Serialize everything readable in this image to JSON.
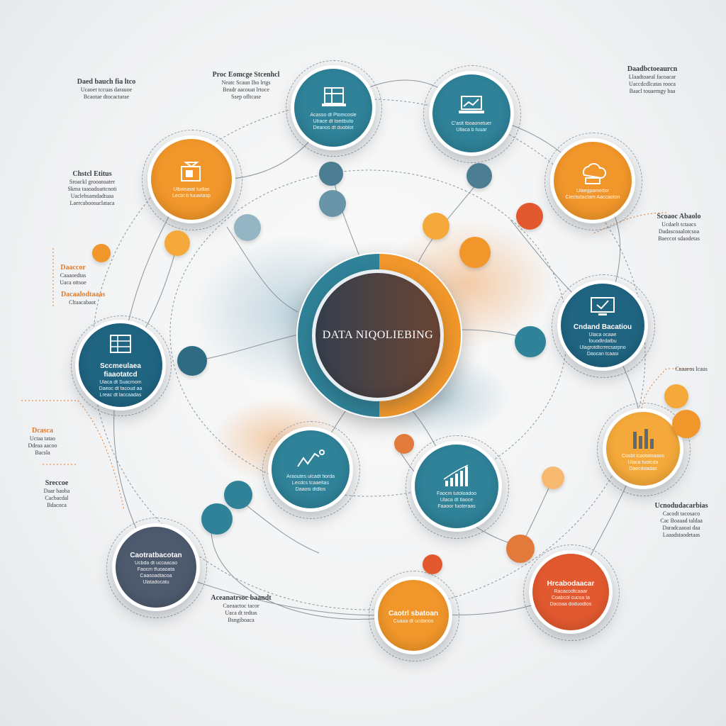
{
  "center": {
    "title": "DATA NIQOLIEBING"
  },
  "colors": {
    "teal": "#2f8298",
    "dark_teal": "#1f6481",
    "orange": "#f0962a",
    "red_orange": "#e2592f",
    "slate": "#4d5a6e",
    "dark_center": "#3b4555",
    "line": "#8a949c"
  },
  "hubs": [
    {
      "id": "h1",
      "icon": "data-table-icon",
      "title": "",
      "lines": [
        "Acasso dt Ptomcosle",
        "Ulrace dt toeitbuto",
        "Deanos dt duoblot"
      ]
    },
    {
      "id": "h2",
      "icon": "laptop-chart-icon",
      "title": "",
      "lines": [
        "C'aslt tboaonetuer",
        "Ullaca b fuuar"
      ]
    },
    {
      "id": "h3",
      "icon": "media-box-icon",
      "title": "",
      "lines": [
        "Ulbalsaiat tudlas",
        "Lecbt b fuuarlasp"
      ]
    },
    {
      "id": "h4",
      "icon": "cloud-storage-icon",
      "title": "",
      "lines": [
        "Ulaegpamedor",
        "Clectsdactam Aaccaoton"
      ]
    },
    {
      "id": "h5",
      "icon": "spreadsheet-icon",
      "title": "Sccmeulaea fiaaotatcd",
      "lines": [
        "Ulaca dt Suacmom",
        "Daeoc dt facoud aa",
        "Lreac dt laccaadas"
      ]
    },
    {
      "id": "h6",
      "icon": "monitor-check-icon",
      "title": "Cndand Bacatiou",
      "lines": [
        "Ulaca ocaae fouodtrdatbu",
        "Ulagrotdtcrrecsarpno",
        "Daocan tcaasi"
      ]
    },
    {
      "id": "h7",
      "icon": "trend-line-icon",
      "title": "",
      "lines": [
        "Araoutes ulcadt fiorda",
        "Lecdcs tcaaeltas",
        "Daaosi dtdlos"
      ]
    },
    {
      "id": "h8",
      "icon": "bar-growth-icon",
      "title": "",
      "lines": [
        "Faocm tutoloadoo",
        "Ulaca dt tlaoce",
        "Faaoor fuoteraas"
      ]
    },
    {
      "id": "h9",
      "icon": "bar-chart-icon",
      "title": "",
      "lines": [
        "Cosbt lcaotatoaaos",
        "Ulaca fuotcda",
        "Daecdoadas"
      ]
    },
    {
      "id": "h10",
      "icon": "",
      "title": "Caotratbacotan",
      "lines": [
        "Ucbda dt uccaacao",
        "Faocm tfuoaoata",
        "Caasoadtacoa",
        "Ulatadocatu"
      ]
    },
    {
      "id": "h11",
      "icon": "",
      "title": "Caotrl sbatoan",
      "lines": [
        "Cuaaa dt ucdanos"
      ]
    },
    {
      "id": "h12",
      "icon": "",
      "title": "Hrcabodaacar",
      "lines": [
        "Racacodtcaaar",
        "Coabcol cucoa ta",
        "Dacoaa doduodtos"
      ]
    }
  ],
  "notes": [
    {
      "id": "n1",
      "title": "Daed bauch fia ltco",
      "lines": [
        "Ucaoer tccuas darauoe",
        "Bcaotae dtocactarae"
      ]
    },
    {
      "id": "n2",
      "title": "Proc Eomcge Stcenhcl",
      "lines": [
        "Neatc Scaun Ibo lrtgs",
        "Beadr aacouat lrtoce",
        "Ssep ofltcase"
      ]
    },
    {
      "id": "n3",
      "title": "Chstcl Etitus",
      "lines": [
        "Sroackl grooanaater",
        "Skma taaoadoattcnoti",
        "Uaclebsamdadtuaa",
        "Laercaboosuclataca"
      ]
    },
    {
      "id": "n4",
      "title": "Daaccor",
      "lines": [
        "Caaaoedtas",
        "Uaca ottsoe"
      ]
    },
    {
      "id": "n5",
      "title": "Daadbctoeaurcn",
      "lines": [
        "Llaadtoaeal facoacar",
        "Uaccdcdlcatas rooca",
        "Baacl touaemgy baa"
      ]
    },
    {
      "id": "n6",
      "title": "Dcasca",
      "lines": [
        "Uctaa tatao",
        "Ddeaa aacoo",
        "Bacsla"
      ]
    },
    {
      "id": "n7",
      "title": "Sreccoe",
      "lines": [
        "Daar baoba",
        "Cacbacdal",
        "Bdacoca"
      ]
    },
    {
      "id": "n8",
      "title": "Scoaoc Abaolo",
      "lines": [
        "Ucdaelt tctaacs",
        "Dadascoaalotcsoa",
        "Baeccot sdaodetas"
      ]
    },
    {
      "id": "n9",
      "title": "Aceanatrsoc baandt",
      "lines": [
        "Cueaactoc tacor",
        "Uaca dt tedtas",
        "Bsngiboaca"
      ]
    },
    {
      "id": "n10",
      "title": "Ucnodudacarbias",
      "lines": [
        "Cacodt tacosaco",
        "Cac Boaaad taldaa",
        "Daradcaaoai daa",
        "Laaadstaodetaas"
      ]
    },
    {
      "id": "n11",
      "title": "",
      "lines": [
        "Cuaaeos lcaus"
      ]
    },
    {
      "id": "n12",
      "title": "Dacaalodtaaas",
      "lines": [
        "Cltaacabaot"
      ]
    }
  ]
}
